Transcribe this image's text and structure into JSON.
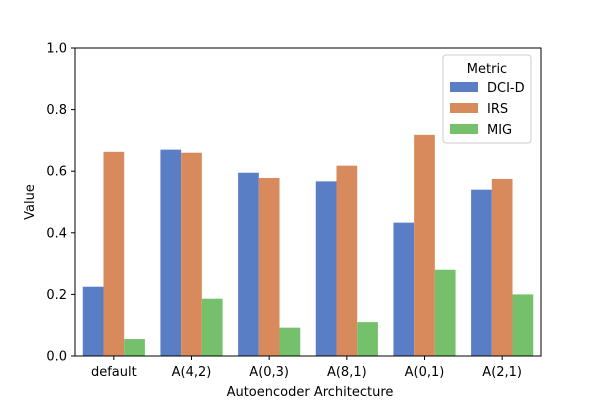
{
  "chart_data": {
    "type": "bar",
    "title": "",
    "xlabel": "Autoencoder Architecture",
    "ylabel": "Value",
    "ylim": [
      0,
      1.0
    ],
    "yticks": [
      "0.0",
      "0.2",
      "0.4",
      "0.6",
      "0.8",
      "1.0"
    ],
    "categories": [
      "default",
      "A(4,2)",
      "A(0,3)",
      "A(8,1)",
      "A(0,1)",
      "A(2,1)"
    ],
    "series": [
      {
        "name": "DCI-D",
        "color": "#5a7ec6",
        "values": [
          0.225,
          0.67,
          0.595,
          0.567,
          0.433,
          0.54
        ]
      },
      {
        "name": "IRS",
        "color": "#d98a5c",
        "values": [
          0.663,
          0.66,
          0.578,
          0.618,
          0.718,
          0.575
        ]
      },
      {
        "name": "MIG",
        "color": "#75c06b",
        "values": [
          0.055,
          0.186,
          0.092,
          0.11,
          0.28,
          0.2
        ]
      }
    ],
    "legend": {
      "title": "Metric",
      "position": "top-right"
    },
    "grid": false
  }
}
